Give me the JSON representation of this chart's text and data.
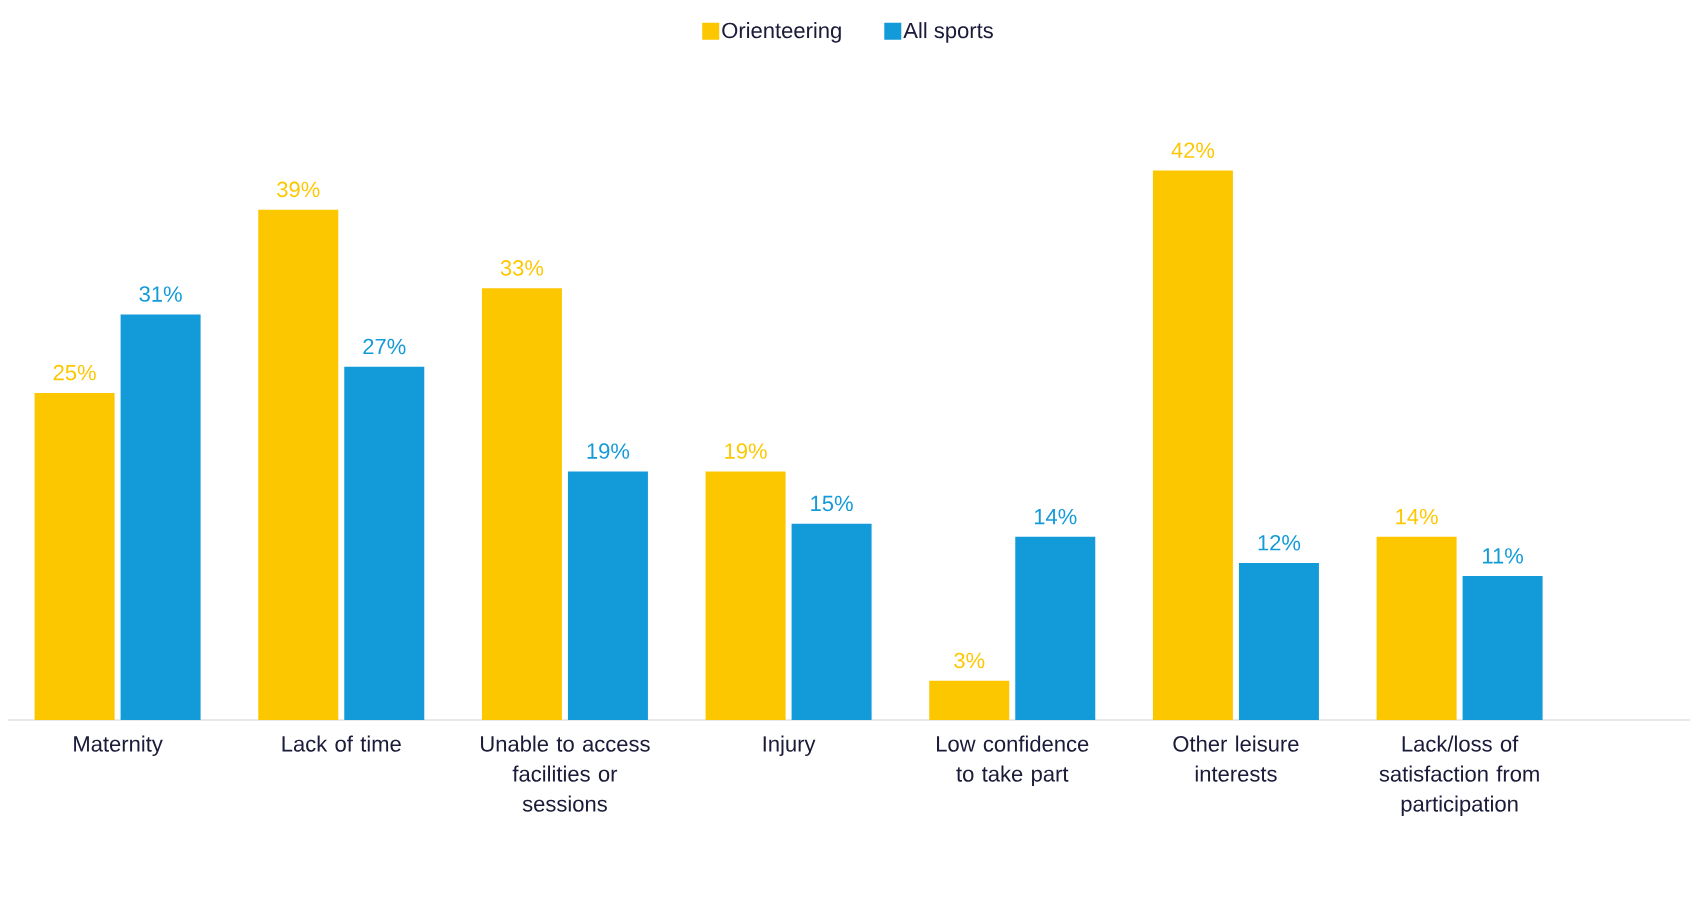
{
  "chart_data": {
    "type": "bar",
    "categories": [
      "Maternity",
      "Lack of time",
      "Unable to access facilities or sessions",
      "Injury",
      "Low confidence to take part",
      "Other leisure interests",
      "Lack/loss of satisfaction from participation"
    ],
    "series": [
      {
        "name": "Orienteering",
        "color": "#fdc700",
        "values": [
          25,
          39,
          33,
          19,
          3,
          42,
          14
        ],
        "value_labels": [
          "25%",
          "39%",
          "33%",
          "19%",
          "3%",
          "42%",
          "14%"
        ]
      },
      {
        "name": "All sports",
        "color": "#139bd9",
        "values": [
          31,
          27,
          19,
          15,
          14,
          12,
          11
        ],
        "value_labels": [
          "31%",
          "27%",
          "19%",
          "15%",
          "14%",
          "12%",
          "11%"
        ]
      }
    ],
    "legend": "top"
  }
}
